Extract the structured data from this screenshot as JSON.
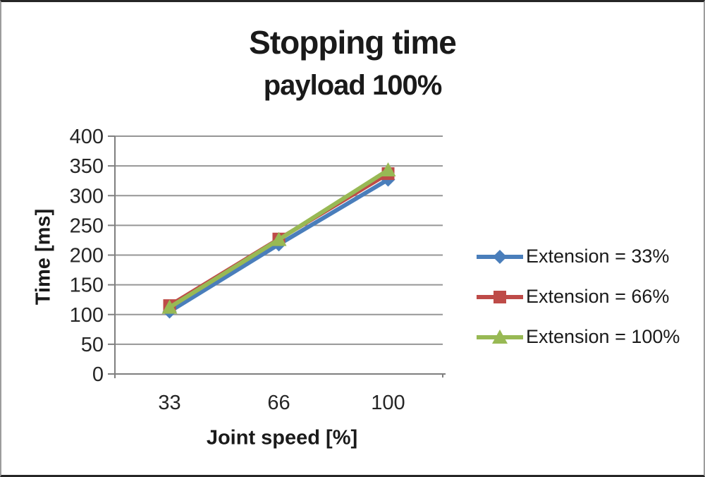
{
  "chart_data": {
    "type": "line",
    "title": "Stopping time",
    "subtitle": "payload 100%",
    "xlabel": "Joint speed [%]",
    "ylabel": "Time [ms]",
    "categories": [
      "33",
      "66",
      "100"
    ],
    "yticks": [
      0,
      50,
      100,
      150,
      200,
      250,
      300,
      350,
      400
    ],
    "ylim": [
      0,
      400
    ],
    "grid": "horizontal",
    "legend_position": "right",
    "series": [
      {
        "name": "Extension = 33%",
        "marker": "diamond",
        "color": "#4A7EBB",
        "values": [
          105,
          218,
          327
        ]
      },
      {
        "name": "Extension = 66%",
        "marker": "square",
        "color": "#BE4B48",
        "values": [
          115,
          227,
          337
        ]
      },
      {
        "name": "Extension = 100%",
        "marker": "triangle",
        "color": "#98B954",
        "values": [
          112,
          226,
          343
        ]
      }
    ]
  },
  "colors": {
    "axis": "#7f7f7f",
    "gridline": "#969696",
    "tick_text": "#262626"
  }
}
